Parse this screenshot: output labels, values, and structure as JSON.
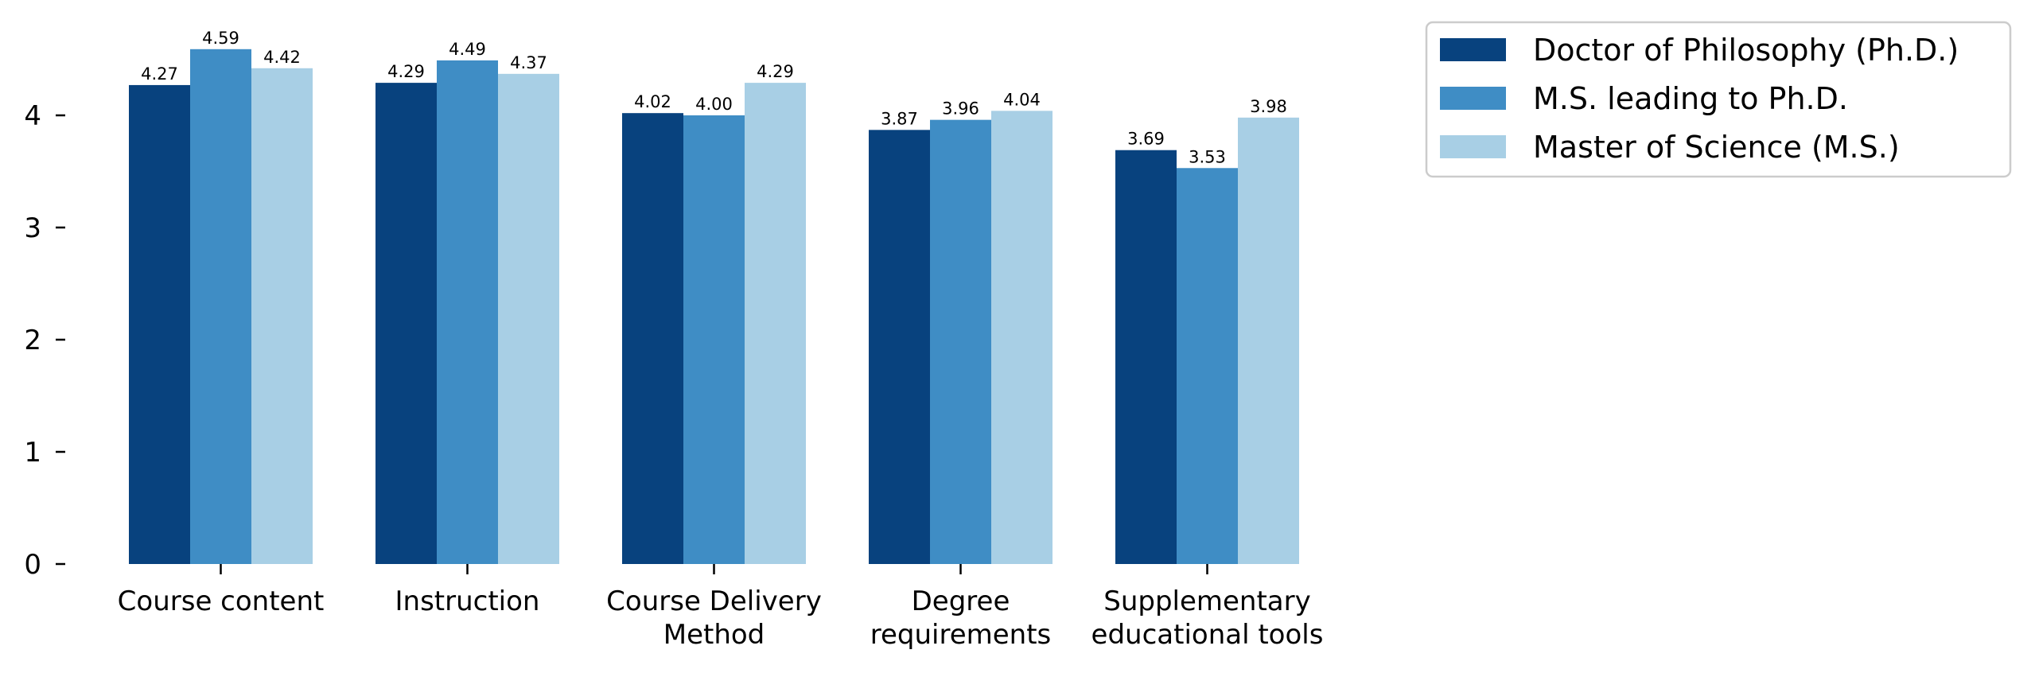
{
  "chart_data": {
    "type": "bar",
    "categories": [
      [
        "Course content"
      ],
      [
        "Instruction"
      ],
      [
        "Course Delivery",
        "Method"
      ],
      [
        "Degree",
        "requirements"
      ],
      [
        "Supplementary",
        "educational tools"
      ]
    ],
    "series": [
      {
        "name": "Doctor of Philosophy (Ph.D.)",
        "color": "#08427e",
        "values": [
          4.27,
          4.29,
          4.02,
          3.87,
          3.69
        ],
        "labels": [
          "4.27",
          "4.29",
          "4.02",
          "3.87",
          "3.69"
        ]
      },
      {
        "name": "M.S. leading to Ph.D.",
        "color": "#3f8dc5",
        "values": [
          4.59,
          4.49,
          4.0,
          3.96,
          3.53
        ],
        "labels": [
          "4.59",
          "4.49",
          "4.00",
          "3.96",
          "3.53"
        ]
      },
      {
        "name": "Master of Science (M.S.)",
        "color": "#a8cfe5",
        "values": [
          4.42,
          4.37,
          4.29,
          4.04,
          3.98
        ],
        "labels": [
          "4.42",
          "4.37",
          "4.29",
          "4.04",
          "3.98"
        ]
      }
    ],
    "y_ticks": [
      0,
      1,
      2,
      3,
      4
    ],
    "y_tick_labels": [
      "0",
      "1",
      "2",
      "3",
      "4"
    ],
    "ylim": [
      0,
      4.75
    ],
    "grid": false,
    "legend_position": "top-right outside"
  }
}
